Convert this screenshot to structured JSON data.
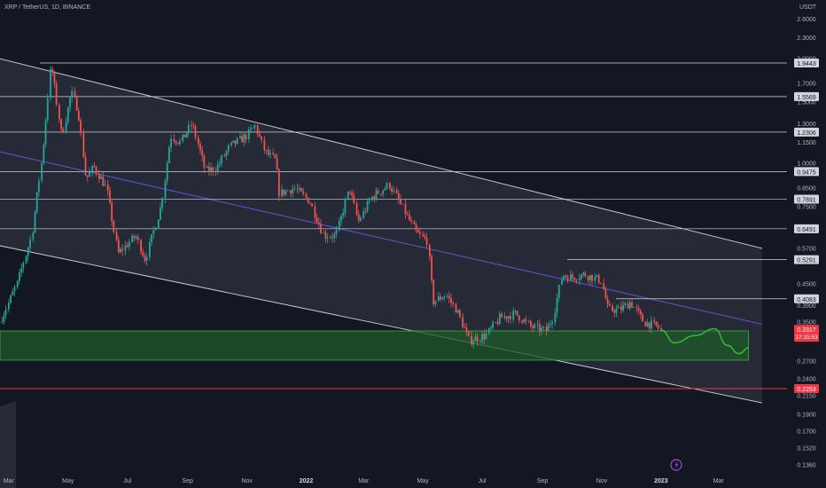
{
  "header": {
    "title": "XRP / TetherUS, 1D, BINANCE",
    "unit": "USDT"
  },
  "colors": {
    "background": "#131722",
    "up": "#26a69a",
    "down": "#ef5350",
    "channel": "#d1d4dc",
    "midline": "#5a5ad6",
    "zone": "#1f5b2a",
    "projection": "#35c43a",
    "label_bg": "#d1d4dc",
    "current_bg": "#f23645"
  },
  "icons": {
    "bottom_marker": "lightning-icon"
  },
  "chart_data": {
    "type": "candlestick",
    "y_scale": "log",
    "ylim": [
      0.13,
      2.9
    ],
    "x_tick_labels": [
      "Mar",
      "May",
      "Jul",
      "Sep",
      "Nov",
      "2022",
      "Mar",
      "May",
      "Jul",
      "Sep",
      "Nov",
      "2023",
      "Mar"
    ],
    "y_tick_labels": [
      "2.6000",
      "2.3000",
      "2.0000",
      "1.7000",
      "1.5000",
      "1.3000",
      "1.1500",
      "1.0000",
      "0.8500",
      "0.7500",
      "0.5700",
      "0.4500",
      "0.3900",
      "0.3500",
      "0.2700",
      "0.2400",
      "0.2150",
      "0.1900",
      "0.1700",
      "0.1520",
      "0.1360"
    ],
    "horizontal_levels": [
      "1.9443",
      "1.5569",
      "1.2306",
      "0.9475",
      "0.7891",
      "0.6491",
      "0.5291",
      "0.4083",
      "0.2253"
    ],
    "current_price": "0.3317",
    "countdown": "17:15:53",
    "price_path": [
      [
        "2021-02-20",
        0.35
      ],
      [
        "2021-03-10",
        0.45
      ],
      [
        "2021-03-25",
        0.62
      ],
      [
        "2021-04-05",
        1.05
      ],
      [
        "2021-04-14",
        1.94
      ],
      [
        "2021-04-25",
        1.2
      ],
      [
        "2021-05-05",
        1.6
      ],
      [
        "2021-05-12",
        1.42
      ],
      [
        "2021-05-20",
        0.9
      ],
      [
        "2021-05-28",
        0.98
      ],
      [
        "2021-06-10",
        0.85
      ],
      [
        "2021-06-22",
        0.55
      ],
      [
        "2021-07-10",
        0.62
      ],
      [
        "2021-07-20",
        0.53
      ],
      [
        "2021-08-05",
        0.75
      ],
      [
        "2021-08-15",
        1.2
      ],
      [
        "2021-08-25",
        1.15
      ],
      [
        "2021-09-06",
        1.3
      ],
      [
        "2021-09-20",
        0.95
      ],
      [
        "2021-10-01",
        0.97
      ],
      [
        "2021-10-15",
        1.12
      ],
      [
        "2021-11-01",
        1.2
      ],
      [
        "2021-11-10",
        1.28
      ],
      [
        "2021-11-20",
        1.08
      ],
      [
        "2021-12-01",
        1.02
      ],
      [
        "2021-12-05",
        0.82
      ],
      [
        "2021-12-20",
        0.85
      ],
      [
        "2022-01-05",
        0.78
      ],
      [
        "2022-01-20",
        0.62
      ],
      [
        "2022-02-01",
        0.62
      ],
      [
        "2022-02-15",
        0.85
      ],
      [
        "2022-02-24",
        0.68
      ],
      [
        "2022-03-10",
        0.8
      ],
      [
        "2022-03-28",
        0.87
      ],
      [
        "2022-04-10",
        0.75
      ],
      [
        "2022-04-25",
        0.63
      ],
      [
        "2022-05-06",
        0.6
      ],
      [
        "2022-05-12",
        0.4
      ],
      [
        "2022-05-25",
        0.42
      ],
      [
        "2022-06-05",
        0.38
      ],
      [
        "2022-06-18",
        0.31
      ],
      [
        "2022-07-05",
        0.32
      ],
      [
        "2022-07-20",
        0.36
      ],
      [
        "2022-08-05",
        0.37
      ],
      [
        "2022-08-20",
        0.34
      ],
      [
        "2022-09-05",
        0.33
      ],
      [
        "2022-09-12",
        0.36
      ],
      [
        "2022-09-22",
        0.48
      ],
      [
        "2022-10-01",
        0.47
      ],
      [
        "2022-10-15",
        0.48
      ],
      [
        "2022-11-01",
        0.46
      ],
      [
        "2022-11-08",
        0.38
      ],
      [
        "2022-11-20",
        0.38
      ],
      [
        "2022-12-01",
        0.4
      ],
      [
        "2022-12-15",
        0.35
      ],
      [
        "2022-12-28",
        0.34
      ],
      [
        "2023-01-01",
        0.3317
      ]
    ],
    "projection_path": [
      [
        "2023-01-01",
        0.3317
      ],
      [
        "2023-01-15",
        0.305
      ],
      [
        "2023-02-05",
        0.32
      ],
      [
        "2023-02-25",
        0.335
      ],
      [
        "2023-03-10",
        0.3
      ],
      [
        "2023-03-22",
        0.284
      ],
      [
        "2023-04-01",
        0.295
      ]
    ],
    "channel": {
      "upper": [
        [
          "2021-02-20",
          2.0
        ],
        [
          "2023-04-15",
          0.57
        ]
      ],
      "lower": [
        [
          "2021-02-20",
          0.58
        ],
        [
          "2023-04-15",
          0.205
        ]
      ],
      "mid": [
        [
          "2021-02-20",
          1.08
        ],
        [
          "2023-04-15",
          0.345
        ]
      ]
    },
    "demand_zone": {
      "low": 0.272,
      "high": 0.33,
      "from": "2021-02-20",
      "to": "2023-04-01"
    }
  }
}
